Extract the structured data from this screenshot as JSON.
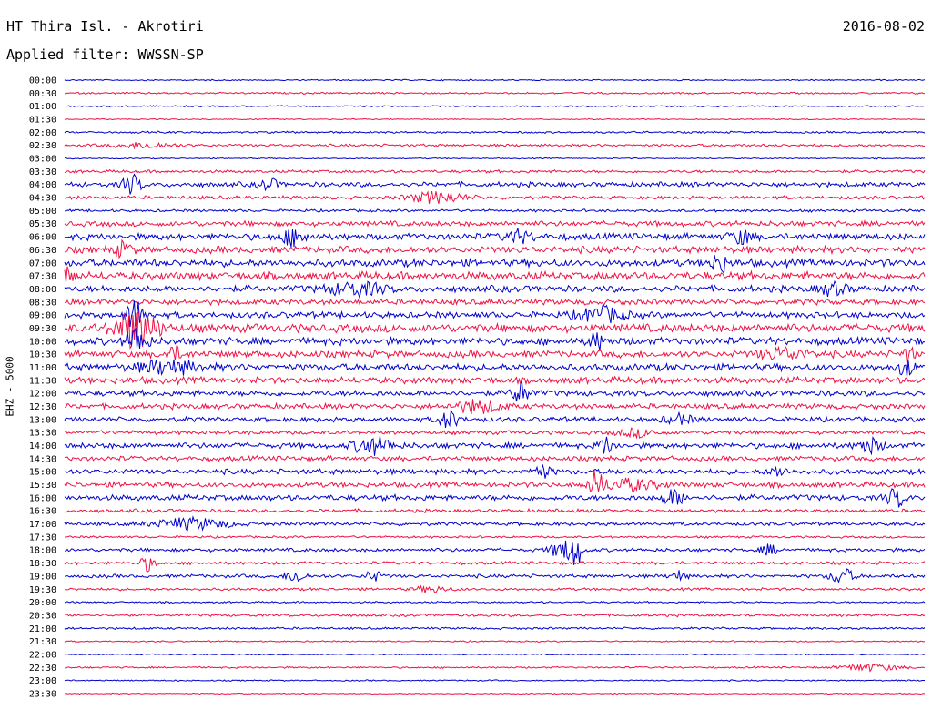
{
  "header": {
    "title": "HT Thira Isl. - Akrotiri",
    "date": "2016-08-02",
    "filter": "Applied filter: WWSSN-SP"
  },
  "chart_data": {
    "type": "line",
    "title": "HT Thira Isl. - Akrotiri",
    "date": "2016-08-02",
    "subtitle": "Applied filter: WWSSN-SP",
    "ylabel": "EHZ - 5000",
    "xlabel": "",
    "row_labels": [
      "00:00",
      "00:30",
      "01:00",
      "01:30",
      "02:00",
      "02:30",
      "03:00",
      "03:30",
      "04:00",
      "04:30",
      "05:00",
      "05:30",
      "06:00",
      "06:30",
      "07:00",
      "07:30",
      "08:00",
      "08:30",
      "09:00",
      "09:30",
      "10:00",
      "10:30",
      "11:00",
      "11:30",
      "12:00",
      "12:30",
      "13:00",
      "13:30",
      "14:00",
      "14:30",
      "15:00",
      "15:30",
      "16:00",
      "16:30",
      "17:00",
      "17:30",
      "18:00",
      "18:30",
      "19:00",
      "19:30",
      "20:00",
      "20:30",
      "21:00",
      "21:30",
      "22:00",
      "22:30",
      "23:00",
      "23:30"
    ],
    "row_colors": [
      "#0000cc",
      "#ee1144"
    ],
    "noise_levels": [
      0.6,
      0.8,
      0.6,
      0.5,
      0.9,
      1.2,
      0.5,
      1.3,
      2.2,
      1.6,
      1.2,
      2.4,
      3.0,
      3.2,
      3.4,
      3.6,
      3.0,
      2.6,
      2.8,
      3.8,
      3.4,
      3.2,
      3.2,
      3.0,
      2.6,
      2.4,
      2.2,
      1.8,
      2.6,
      2.2,
      2.4,
      2.4,
      2.6,
      1.6,
      1.6,
      1.0,
      1.6,
      1.4,
      1.6,
      1.2,
      0.8,
      1.2,
      1.0,
      0.6,
      0.5,
      0.8,
      0.6,
      0.5
    ],
    "events": [
      {
        "row": 5,
        "x": 160,
        "amp": 3,
        "width": 30
      },
      {
        "row": 8,
        "x": 145,
        "amp": 10,
        "width": 10
      },
      {
        "row": 8,
        "x": 295,
        "amp": 6,
        "width": 10
      },
      {
        "row": 9,
        "x": 480,
        "amp": 6,
        "width": 30
      },
      {
        "row": 12,
        "x": 322,
        "amp": 8,
        "width": 15
      },
      {
        "row": 12,
        "x": 570,
        "amp": 6,
        "width": 15
      },
      {
        "row": 12,
        "x": 815,
        "amp": 7,
        "width": 12
      },
      {
        "row": 13,
        "x": 135,
        "amp": 7,
        "width": 10
      },
      {
        "row": 14,
        "x": 790,
        "amp": 12,
        "width": 8
      },
      {
        "row": 15,
        "x": 75,
        "amp": 8,
        "width": 8
      },
      {
        "row": 16,
        "x": 390,
        "amp": 7,
        "width": 30
      },
      {
        "row": 16,
        "x": 915,
        "amp": 6,
        "width": 15
      },
      {
        "row": 18,
        "x": 148,
        "amp": 16,
        "width": 10
      },
      {
        "row": 18,
        "x": 660,
        "amp": 8,
        "width": 25
      },
      {
        "row": 19,
        "x": 150,
        "amp": 22,
        "width": 22
      },
      {
        "row": 20,
        "x": 150,
        "amp": 14,
        "width": 12
      },
      {
        "row": 20,
        "x": 655,
        "amp": 9,
        "width": 8
      },
      {
        "row": 21,
        "x": 190,
        "amp": 7,
        "width": 10
      },
      {
        "row": 21,
        "x": 860,
        "amp": 6,
        "width": 25
      },
      {
        "row": 21,
        "x": 998,
        "amp": 9,
        "width": 6
      },
      {
        "row": 22,
        "x": 185,
        "amp": 7,
        "width": 30
      },
      {
        "row": 22,
        "x": 995,
        "amp": 9,
        "width": 8
      },
      {
        "row": 24,
        "x": 572,
        "amp": 11,
        "width": 10
      },
      {
        "row": 25,
        "x": 525,
        "amp": 7,
        "width": 25
      },
      {
        "row": 26,
        "x": 493,
        "amp": 10,
        "width": 10
      },
      {
        "row": 26,
        "x": 745,
        "amp": 5,
        "width": 15
      },
      {
        "row": 27,
        "x": 700,
        "amp": 4,
        "width": 20
      },
      {
        "row": 28,
        "x": 410,
        "amp": 9,
        "width": 20
      },
      {
        "row": 28,
        "x": 665,
        "amp": 9,
        "width": 8
      },
      {
        "row": 28,
        "x": 955,
        "amp": 8,
        "width": 12
      },
      {
        "row": 30,
        "x": 595,
        "amp": 7,
        "width": 10
      },
      {
        "row": 30,
        "x": 855,
        "amp": 5,
        "width": 10
      },
      {
        "row": 31,
        "x": 655,
        "amp": 13,
        "width": 8
      },
      {
        "row": 31,
        "x": 690,
        "amp": 6,
        "width": 30
      },
      {
        "row": 32,
        "x": 740,
        "amp": 8,
        "width": 12
      },
      {
        "row": 32,
        "x": 985,
        "amp": 10,
        "width": 10
      },
      {
        "row": 34,
        "x": 210,
        "amp": 6,
        "width": 40
      },
      {
        "row": 36,
        "x": 620,
        "amp": 10,
        "width": 15
      },
      {
        "row": 36,
        "x": 633,
        "amp": 14,
        "width": 6
      },
      {
        "row": 36,
        "x": 845,
        "amp": 6,
        "width": 8
      },
      {
        "row": 37,
        "x": 162,
        "amp": 8,
        "width": 8
      },
      {
        "row": 38,
        "x": 325,
        "amp": 7,
        "width": 10
      },
      {
        "row": 38,
        "x": 410,
        "amp": 6,
        "width": 8
      },
      {
        "row": 38,
        "x": 745,
        "amp": 6,
        "width": 8
      },
      {
        "row": 38,
        "x": 925,
        "amp": 9,
        "width": 12
      },
      {
        "row": 39,
        "x": 475,
        "amp": 3,
        "width": 20
      },
      {
        "row": 45,
        "x": 955,
        "amp": 4,
        "width": 30
      }
    ]
  }
}
